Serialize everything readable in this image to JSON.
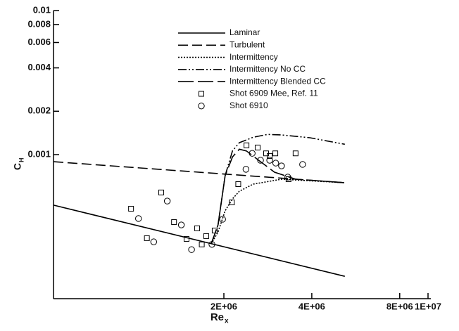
{
  "chart_data": {
    "type": "line",
    "xlabel": {
      "text": "Re",
      "sub": "x"
    },
    "ylabel": {
      "text": "C",
      "sub": "H"
    },
    "xscale": "log",
    "yscale": "log",
    "xlim": [
      522000,
      10000000
    ],
    "ylim": [
      0.0001,
      0.01
    ],
    "xticks": [
      {
        "value": 2000000,
        "label": "2E+06"
      },
      {
        "value": 4000000,
        "label": "4E+06"
      },
      {
        "value": 8000000,
        "label": "8E+06"
      },
      {
        "value": 10000000,
        "label": "1E+07"
      }
    ],
    "yticks": [
      0.001,
      0.002,
      0.004,
      0.006,
      0.008,
      0.01
    ],
    "legend": "top-center",
    "series": [
      {
        "name": "Laminar",
        "color": "#000000",
        "style": "solid",
        "x": [
          522000,
          5190000
        ],
        "values": [
          0.000446,
          0.000143
        ]
      },
      {
        "name": "Turbulent",
        "color": "#000000",
        "style": "dashed",
        "x": [
          522000,
          5190000
        ],
        "values": [
          0.000893,
          0.000638
        ]
      },
      {
        "name": "Intermittency",
        "color": "#000000",
        "style": "dotted",
        "x": [
          1810000,
          1910000,
          2020000,
          2140000,
          2260000,
          2520000,
          3150000,
          5190000
        ],
        "values": [
          0.00024,
          0.00029,
          0.000407,
          0.000493,
          0.000557,
          0.000624,
          0.000675,
          0.000638
        ]
      },
      {
        "name": "Intermittency No CC",
        "color": "#000000",
        "style": "dashdot",
        "x": [
          1810000,
          1910000,
          2020000,
          2140000,
          2260000,
          2520000,
          2820000,
          3150000,
          3940000,
          5190000
        ],
        "values": [
          0.00024,
          0.000325,
          0.000714,
          0.00106,
          0.00121,
          0.00132,
          0.00138,
          0.00137,
          0.00131,
          0.00118
        ]
      },
      {
        "name": "Intermittency Blended CC",
        "color": "#000000",
        "style": "longdash",
        "x": [
          1810000,
          1910000,
          2020000,
          2140000,
          2260000,
          2390000,
          2670000,
          2980000,
          3520000,
          5190000
        ],
        "values": [
          0.00024,
          0.000325,
          0.000714,
          0.000962,
          0.00109,
          0.00106,
          0.000893,
          0.000755,
          0.000675,
          0.000638
        ]
      },
      {
        "name": "Shot 6909  Mee, Ref. 11",
        "color": "#000000",
        "style": "square",
        "x": [
          962000,
          1220000,
          1350000,
          1090000,
          1620000,
          1490000,
          1740000,
          1860000,
          1680000,
          2130000,
          2240000,
          2390000,
          2610000,
          2790000,
          3000000,
          2870000,
          3520000,
          3330000
        ],
        "values": [
          0.000421,
          0.000546,
          0.00034,
          0.000263,
          0.000308,
          0.00026,
          0.000272,
          0.000297,
          0.000238,
          0.000466,
          0.000624,
          0.00116,
          0.00112,
          0.00102,
          0.00102,
          0.000977,
          0.00102,
          0.000675
        ]
      },
      {
        "name": "Shot 6910",
        "color": "#000000",
        "style": "circle",
        "x": [
          1020000,
          1280000,
          1430000,
          1150000,
          1550000,
          1820000,
          1980000,
          2380000,
          2500000,
          2670000,
          2870000,
          3010000,
          3150000,
          3720000,
          3310000
        ],
        "values": [
          0.00036,
          0.000476,
          0.000325,
          0.000248,
          0.000219,
          0.000238,
          0.000356,
          0.000791,
          0.00102,
          0.000914,
          0.000914,
          0.000873,
          0.000835,
          0.000855,
          0.000698
        ]
      }
    ]
  }
}
